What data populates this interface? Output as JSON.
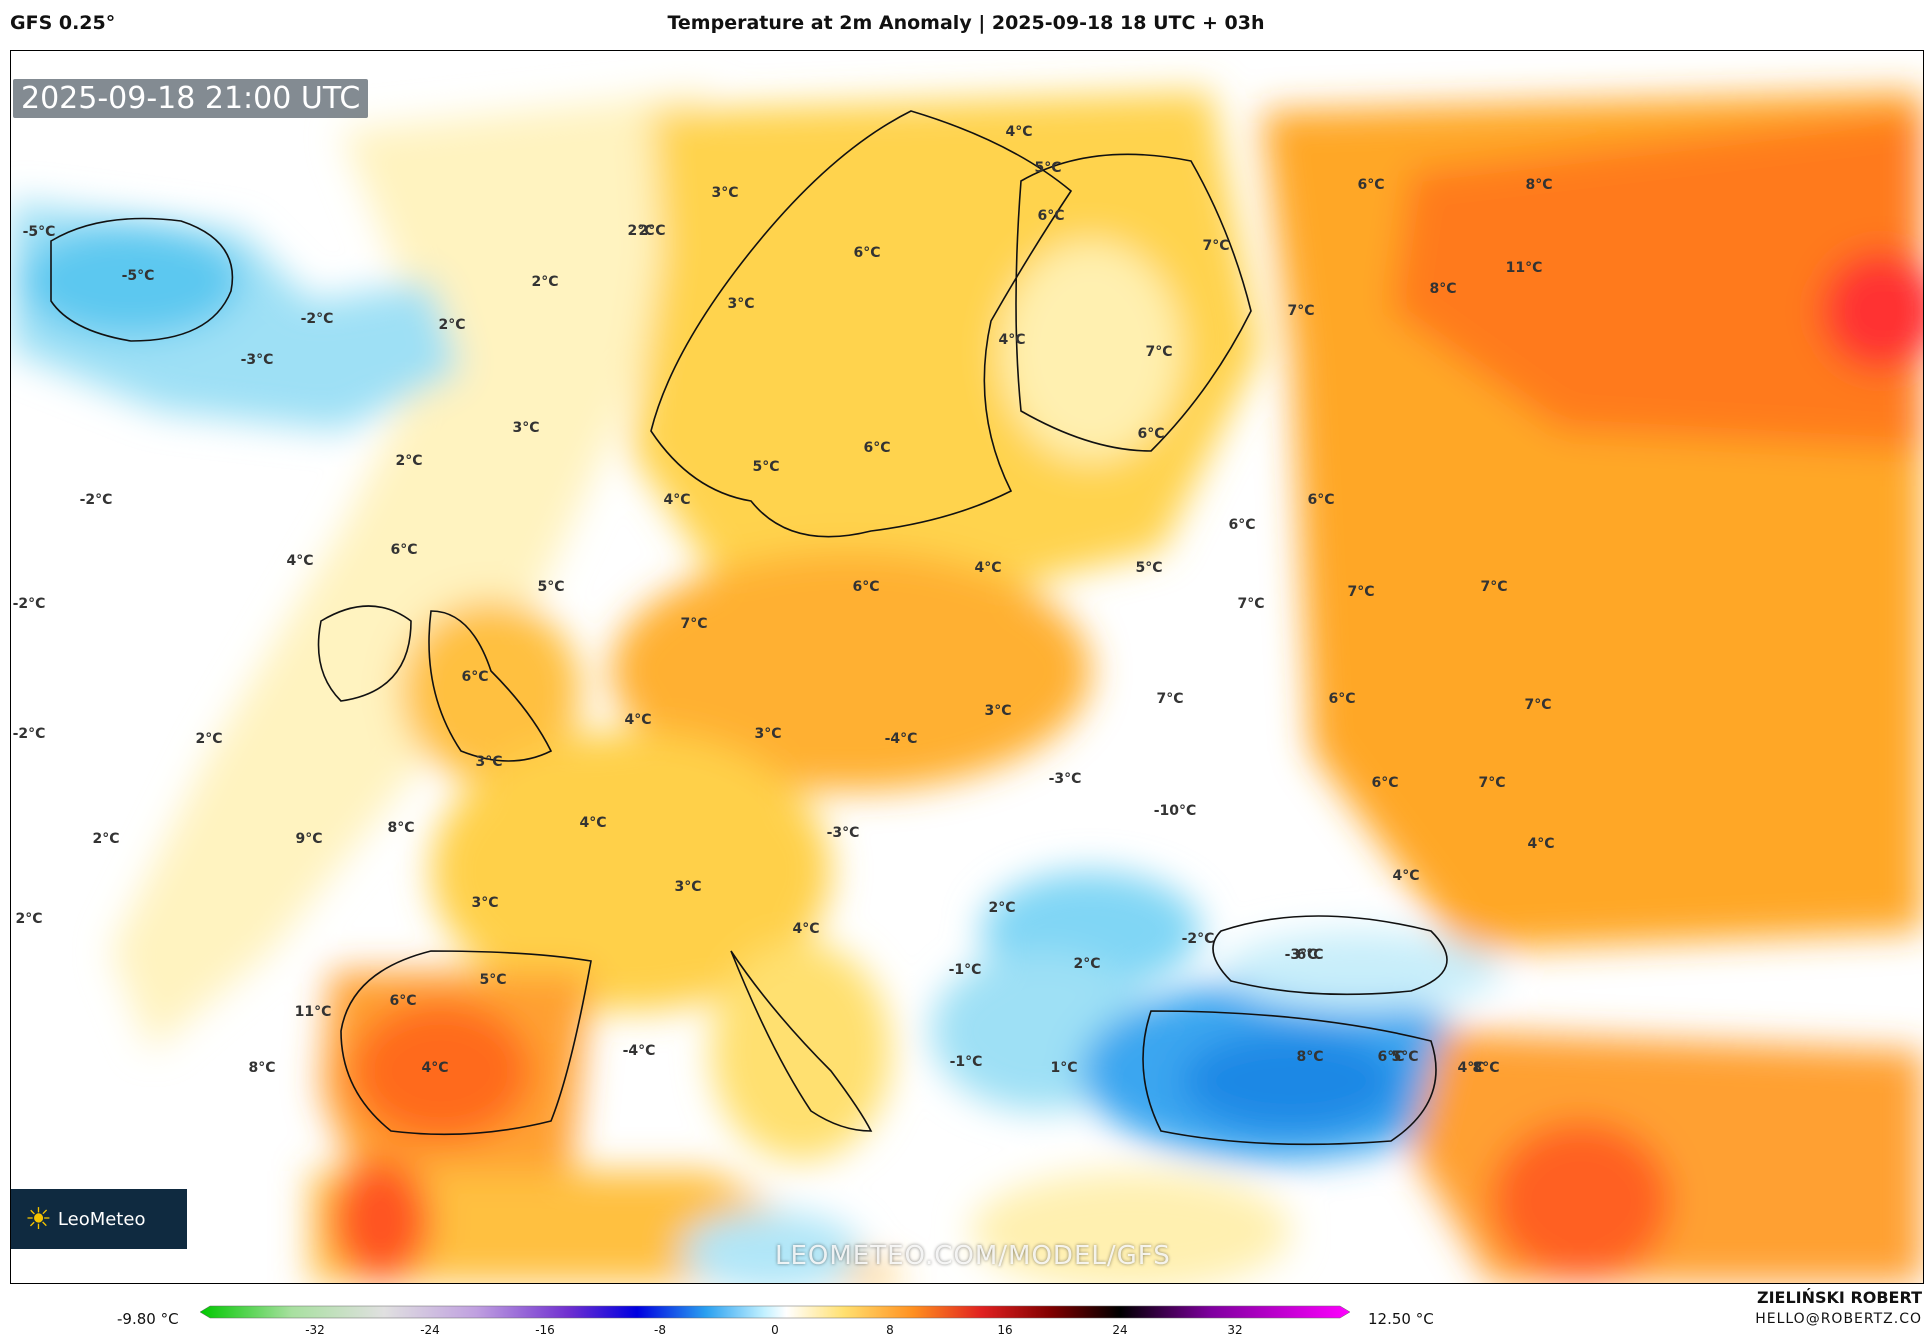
{
  "header": {
    "model": "GFS 0.25°",
    "title": "Temperature at 2m Anomaly | 2025-09-18 18 UTC + 03h"
  },
  "map": {
    "timestamp": "2025-09-18 21:00 UTC",
    "watermark": "LEOMETEO.COM/MODEL/GFS",
    "logo_text": "LeoMeteo",
    "labels": [
      "-5°C",
      "-5°C",
      "-2°C",
      "-3°C",
      "2°C",
      "2°C",
      "2°C",
      "-2°C",
      "-2°C",
      "-2°C",
      "2°C",
      "2°C",
      "2°C",
      "2°C",
      "2°C",
      "3°C",
      "3°C",
      "4°C",
      "5°C",
      "6°C",
      "6°C",
      "4°C",
      "5°C",
      "7°C",
      "6°C",
      "4°C",
      "3°C",
      "9°C",
      "8°C",
      "3°C",
      "4°C",
      "3°C",
      "5°C",
      "6°C",
      "11°C",
      "8°C",
      "4°C",
      "-4°C",
      "3°C",
      "5°C",
      "6°C",
      "3°C",
      "4°C",
      "6°C",
      "3°C",
      "-4°C",
      "-3°C",
      "-3°C",
      "-10°C",
      "2°C",
      "4°C",
      "2°C",
      "-1°C",
      "-1°C",
      "1°C",
      "4°C",
      "6°C",
      "7°C",
      "6°C",
      "7°C",
      "7°C",
      "8°C",
      "11°C",
      "8°C",
      "7°C",
      "7°C",
      "6°C",
      "6°C",
      "6°C",
      "5°C",
      "7°C",
      "7°C",
      "7°C",
      "6°C",
      "6°C",
      "7°C",
      "4°C",
      "4°C",
      "-2°C",
      "-3°C",
      "8°C",
      "6°C",
      "8°C",
      "4°C",
      "5°C",
      "4°C",
      "6°C"
    ]
  },
  "legend": {
    "min_label": "-9.80 °C",
    "max_label": "12.50 °C",
    "ticks": [
      "-32",
      "-24",
      "-16",
      "-8",
      "0",
      "8",
      "16",
      "24",
      "32"
    ]
  },
  "author": {
    "name": "ZIELIŃSKI ROBERT",
    "email": "HELLO@ROBERTZ.CO"
  }
}
